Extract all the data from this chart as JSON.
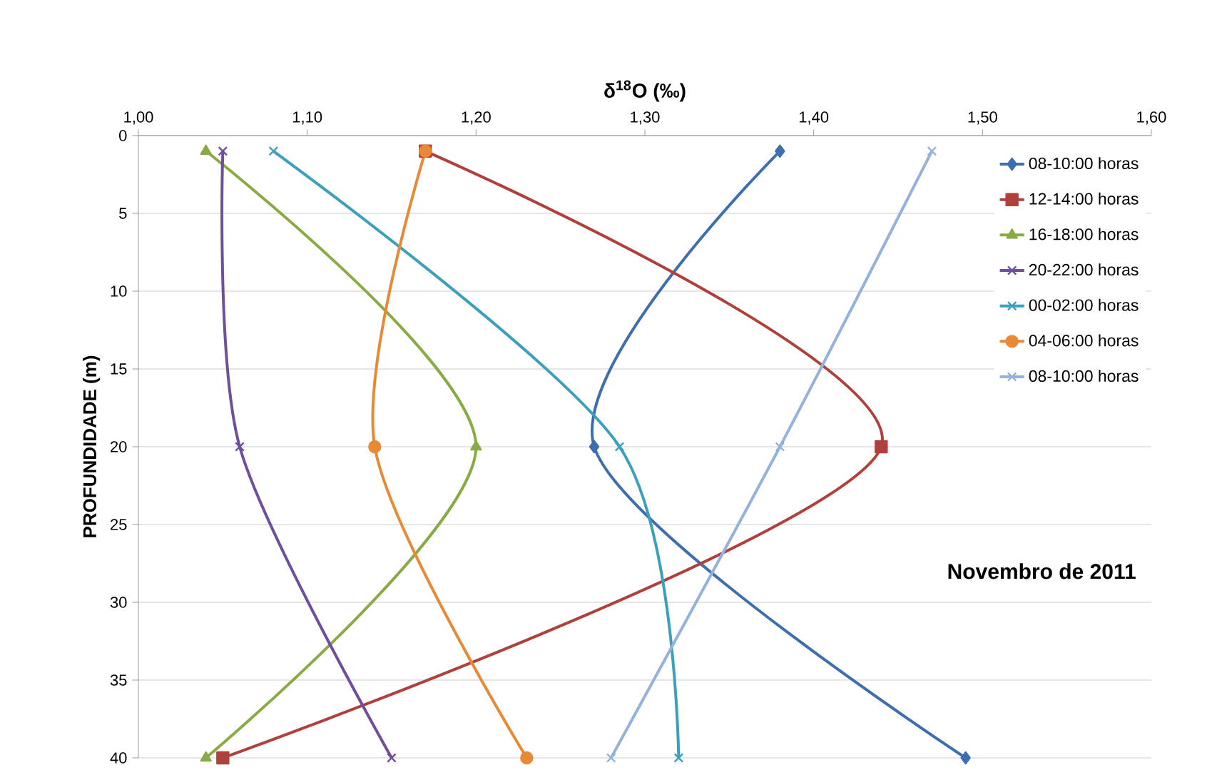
{
  "chart_data": {
    "type": "line",
    "xlabel": "δ$^{18}$O (‰)",
    "ylabel": "PROFUNDIDADE (m)",
    "xlim": [
      1.0,
      1.6
    ],
    "xticks": [
      {
        "value": 1.0,
        "label": "1,00"
      },
      {
        "value": 1.1,
        "label": "1,10"
      },
      {
        "value": 1.2,
        "label": "1,20"
      },
      {
        "value": 1.3,
        "label": "1,30"
      },
      {
        "value": 1.4,
        "label": "1,40"
      },
      {
        "value": 1.5,
        "label": "1,50"
      },
      {
        "value": 1.6,
        "label": "1,60"
      }
    ],
    "ylim": [
      40,
      0
    ],
    "yticks": [
      0,
      5,
      10,
      15,
      20,
      25,
      30,
      35,
      40
    ],
    "grid": "y",
    "legend": "right",
    "annotations": [
      "Novembro de 2011"
    ],
    "series": [
      {
        "name": "08-10:00 horas",
        "color": "#3d6eb0",
        "marker": "diamond",
        "x": [
          1.38,
          1.27,
          1.49
        ],
        "values": [
          1,
          20,
          40
        ]
      },
      {
        "name": "12-14:00 horas",
        "color": "#b0403c",
        "marker": "square",
        "x": [
          1.17,
          1.44,
          1.05
        ],
        "values": [
          1,
          20,
          40
        ]
      },
      {
        "name": "16-18:00 horas",
        "color": "#8aaa44",
        "marker": "triangle",
        "x": [
          1.04,
          1.2,
          1.04
        ],
        "values": [
          1,
          20,
          40
        ]
      },
      {
        "name": "20-22:00 horas",
        "color": "#6f4f9c",
        "marker": "cross",
        "x": [
          1.05,
          1.06,
          1.15
        ],
        "values": [
          1,
          20,
          40
        ]
      },
      {
        "name": "00-02:00 horas",
        "color": "#3aa0bc",
        "marker": "cross",
        "x": [
          1.08,
          1.285,
          1.32
        ],
        "values": [
          1,
          20,
          40
        ]
      },
      {
        "name": "04-06:00 horas",
        "color": "#e88a35",
        "marker": "circle",
        "x": [
          1.17,
          1.14,
          1.23
        ],
        "values": [
          1,
          20,
          40
        ]
      },
      {
        "name": "08-10:00 horas",
        "color": "#95b2dc",
        "marker": "cross",
        "x": [
          1.47,
          1.38,
          1.28
        ],
        "values": [
          1,
          20,
          40
        ]
      }
    ]
  }
}
